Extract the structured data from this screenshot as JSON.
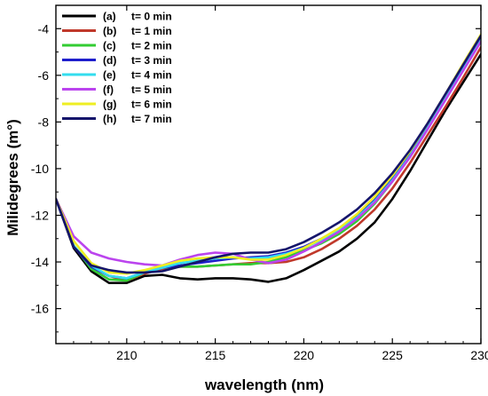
{
  "chart_data": {
    "type": "line",
    "title": "",
    "xlabel": "wavelength (nm)",
    "ylabel": "Milidegrees (m°)",
    "xlim": [
      206,
      230
    ],
    "ylim": [
      -17.5,
      -3
    ],
    "x_ticks": [
      210,
      215,
      220,
      225,
      230
    ],
    "x_tick_labels": [
      "210",
      "215",
      "220",
      "225",
      "230"
    ],
    "y_ticks": [
      -4,
      -6,
      -8,
      -10,
      -12,
      -14,
      -16
    ],
    "y_tick_labels": [
      "-4",
      "-6",
      "-8",
      "-10",
      "-12",
      "-14",
      "-16"
    ],
    "grid": false,
    "legend_position": "top-left",
    "series": [
      {
        "label": "(a)",
        "name": "t= 0 min",
        "color": "#000000",
        "x": [
          206,
          207,
          208,
          209,
          210,
          211,
          212,
          213,
          214,
          215,
          216,
          217,
          218,
          219,
          220,
          221,
          222,
          223,
          224,
          225,
          226,
          227,
          228,
          229,
          230
        ],
        "y": [
          -11.3,
          -13.4,
          -14.4,
          -14.9,
          -14.9,
          -14.6,
          -14.55,
          -14.7,
          -14.75,
          -14.7,
          -14.7,
          -14.75,
          -14.85,
          -14.7,
          -14.35,
          -13.95,
          -13.55,
          -13.0,
          -12.3,
          -11.3,
          -10.1,
          -8.8,
          -7.5,
          -6.3,
          -5.1
        ]
      },
      {
        "label": "(b)",
        "name": "t= 1 min",
        "color": "#c0392b",
        "x": [
          206,
          207,
          208,
          209,
          210,
          211,
          212,
          213,
          214,
          215,
          216,
          217,
          218,
          219,
          220,
          221,
          222,
          223,
          224,
          225,
          226,
          227,
          228,
          229,
          230
        ],
        "y": [
          -11.3,
          -13.3,
          -14.2,
          -14.6,
          -14.8,
          -14.5,
          -14.3,
          -14.2,
          -14.2,
          -14.15,
          -14.1,
          -14.05,
          -14.05,
          -14.0,
          -13.8,
          -13.45,
          -13.0,
          -12.45,
          -11.75,
          -10.85,
          -9.75,
          -8.55,
          -7.35,
          -6.1,
          -4.8
        ]
      },
      {
        "label": "(c)",
        "name": "t= 2 min",
        "color": "#33cc33",
        "x": [
          206,
          207,
          208,
          209,
          210,
          211,
          212,
          213,
          214,
          215,
          216,
          217,
          218,
          219,
          220,
          221,
          222,
          223,
          224,
          225,
          226,
          227,
          228,
          229,
          230
        ],
        "y": [
          -11.3,
          -13.3,
          -14.3,
          -14.75,
          -14.8,
          -14.45,
          -14.25,
          -14.2,
          -14.2,
          -14.15,
          -14.1,
          -14.1,
          -14.0,
          -13.8,
          -13.5,
          -13.2,
          -12.8,
          -12.25,
          -11.5,
          -10.55,
          -9.45,
          -8.25,
          -7.0,
          -5.75,
          -4.55
        ]
      },
      {
        "label": "(d)",
        "name": "t= 3 min",
        "color": "#1f1fcc",
        "x": [
          206,
          207,
          208,
          209,
          210,
          211,
          212,
          213,
          214,
          215,
          216,
          217,
          218,
          219,
          220,
          221,
          222,
          223,
          224,
          225,
          226,
          227,
          228,
          229,
          230
        ],
        "y": [
          -11.3,
          -13.35,
          -14.2,
          -14.6,
          -14.7,
          -14.45,
          -14.25,
          -14.15,
          -14.05,
          -13.95,
          -13.85,
          -13.8,
          -13.75,
          -13.6,
          -13.35,
          -13.0,
          -12.6,
          -12.05,
          -11.35,
          -10.45,
          -9.4,
          -8.2,
          -6.95,
          -5.7,
          -4.45
        ]
      },
      {
        "label": "(e)",
        "name": "t= 4 min",
        "color": "#33ddee",
        "x": [
          206,
          207,
          208,
          209,
          210,
          211,
          212,
          213,
          214,
          215,
          216,
          217,
          218,
          219,
          220,
          221,
          222,
          223,
          224,
          225,
          226,
          227,
          228,
          229,
          230
        ],
        "y": [
          -11.3,
          -13.3,
          -14.15,
          -14.6,
          -14.7,
          -14.45,
          -14.25,
          -14.05,
          -13.95,
          -13.85,
          -13.8,
          -13.85,
          -13.8,
          -13.65,
          -13.4,
          -13.05,
          -12.65,
          -12.1,
          -11.4,
          -10.5,
          -9.45,
          -8.25,
          -7.0,
          -5.75,
          -4.5
        ]
      },
      {
        "label": "(f)",
        "name": "t= 5 min",
        "color": "#bb44ee",
        "x": [
          206,
          207,
          208,
          209,
          210,
          211,
          212,
          213,
          214,
          215,
          216,
          217,
          218,
          219,
          220,
          221,
          222,
          223,
          224,
          225,
          226,
          227,
          228,
          229,
          230
        ],
        "y": [
          -11.3,
          -12.9,
          -13.6,
          -13.85,
          -14.0,
          -14.1,
          -14.15,
          -13.9,
          -13.7,
          -13.6,
          -13.65,
          -13.9,
          -14.05,
          -13.9,
          -13.55,
          -13.15,
          -12.7,
          -12.15,
          -11.45,
          -10.55,
          -9.5,
          -8.3,
          -7.05,
          -5.8,
          -4.55
        ]
      },
      {
        "label": "(g)",
        "name": "t= 6 min",
        "color": "#eeee22",
        "x": [
          206,
          207,
          208,
          209,
          210,
          211,
          212,
          213,
          214,
          215,
          216,
          217,
          218,
          219,
          220,
          221,
          222,
          223,
          224,
          225,
          226,
          227,
          228,
          229,
          230
        ],
        "y": [
          -11.3,
          -13.1,
          -14.05,
          -14.45,
          -14.5,
          -14.35,
          -14.15,
          -13.95,
          -13.85,
          -13.8,
          -13.8,
          -13.9,
          -13.9,
          -13.7,
          -13.4,
          -13.0,
          -12.55,
          -11.95,
          -11.2,
          -10.3,
          -9.25,
          -8.05,
          -6.8,
          -5.5,
          -4.25
        ]
      },
      {
        "label": "(h)",
        "name": "t= 7 min",
        "color": "#15156b",
        "x": [
          206,
          207,
          208,
          209,
          210,
          211,
          212,
          213,
          214,
          215,
          216,
          217,
          218,
          219,
          220,
          221,
          222,
          223,
          224,
          225,
          226,
          227,
          228,
          229,
          230
        ],
        "y": [
          -11.3,
          -13.35,
          -14.15,
          -14.35,
          -14.45,
          -14.45,
          -14.4,
          -14.2,
          -14.0,
          -13.8,
          -13.65,
          -13.6,
          -13.6,
          -13.45,
          -13.15,
          -12.75,
          -12.3,
          -11.75,
          -11.05,
          -10.2,
          -9.2,
          -8.05,
          -6.8,
          -5.55,
          -4.3
        ]
      }
    ]
  }
}
